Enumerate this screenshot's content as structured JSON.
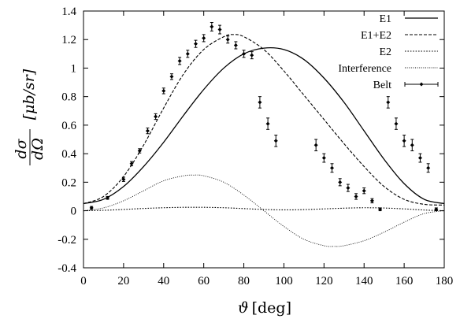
{
  "chart_data": {
    "type": "line",
    "xlabel_symbol": "ϑ",
    "xlabel_unit": "[deg]",
    "ylabel_num": "dσ",
    "ylabel_den": "dΩ",
    "ylabel_unit": "[μb/sr]",
    "xlim": [
      0,
      180
    ],
    "ylim": [
      -0.4,
      1.4
    ],
    "xticks": [
      0,
      20,
      40,
      60,
      80,
      100,
      120,
      140,
      160,
      180
    ],
    "yticks": [
      -0.4,
      -0.2,
      0,
      0.2,
      0.4,
      0.6,
      0.8,
      1,
      1.2,
      1.4
    ],
    "ytick_labels": [
      "-0.4",
      "-0.2",
      "0",
      "0.2",
      "0.4",
      "0.6",
      "0.8",
      "1",
      "1.2",
      "1.4"
    ],
    "grid": false,
    "legend_position": "top-right",
    "series": [
      {
        "name": "E1",
        "style": "solid",
        "x": [
          0,
          10,
          20,
          30,
          40,
          50,
          60,
          70,
          80,
          90,
          100,
          110,
          120,
          130,
          140,
          150,
          160,
          170,
          180
        ],
        "y": [
          0.05,
          0.08,
          0.17,
          0.31,
          0.48,
          0.67,
          0.85,
          1.0,
          1.1,
          1.14,
          1.13,
          1.06,
          0.93,
          0.76,
          0.56,
          0.36,
          0.19,
          0.08,
          0.05
        ]
      },
      {
        "name": "E1+E2",
        "style": "dashed",
        "x": [
          0,
          10,
          20,
          30,
          40,
          50,
          60,
          70,
          75,
          80,
          90,
          100,
          110,
          120,
          130,
          140,
          150,
          160,
          170,
          180
        ],
        "y": [
          0.05,
          0.1,
          0.24,
          0.46,
          0.72,
          0.96,
          1.13,
          1.22,
          1.235,
          1.22,
          1.13,
          0.98,
          0.81,
          0.64,
          0.47,
          0.31,
          0.17,
          0.08,
          0.045,
          0.04
        ]
      },
      {
        "name": "E2",
        "style": "dotted",
        "x": [
          0,
          10,
          20,
          30,
          40,
          50,
          60,
          70,
          80,
          90,
          100,
          110,
          120,
          130,
          140,
          150,
          160,
          170,
          180
        ],
        "y": [
          0.0,
          0.003,
          0.009,
          0.016,
          0.021,
          0.024,
          0.024,
          0.021,
          0.015,
          0.009,
          0.006,
          0.008,
          0.013,
          0.018,
          0.021,
          0.019,
          0.013,
          0.005,
          0.0
        ]
      },
      {
        "name": "Interference",
        "style": "fine-dotted",
        "x": [
          0,
          10,
          20,
          30,
          40,
          50,
          55,
          60,
          70,
          80,
          90,
          100,
          110,
          120,
          125,
          130,
          140,
          150,
          160,
          170,
          180
        ],
        "y": [
          0.0,
          0.02,
          0.07,
          0.14,
          0.21,
          0.245,
          0.25,
          0.245,
          0.2,
          0.11,
          0.0,
          -0.11,
          -0.2,
          -0.245,
          -0.25,
          -0.245,
          -0.21,
          -0.15,
          -0.08,
          -0.02,
          0.0
        ]
      },
      {
        "name": "Belt",
        "style": "points-with-errorbars",
        "x": [
          4,
          12,
          20,
          24,
          28,
          32,
          36,
          40,
          44,
          48,
          52,
          56,
          60,
          64,
          68,
          72,
          76,
          80,
          84,
          88,
          92,
          96,
          116,
          120,
          124,
          128,
          132,
          136,
          140,
          144,
          148,
          152,
          156,
          160,
          164,
          168,
          172,
          176
        ],
        "y": [
          0.02,
          0.09,
          0.22,
          0.33,
          0.42,
          0.56,
          0.66,
          0.84,
          0.94,
          1.05,
          1.1,
          1.17,
          1.21,
          1.29,
          1.27,
          1.2,
          1.16,
          1.1,
          1.09,
          0.76,
          0.61,
          0.49,
          0.46,
          0.37,
          0.3,
          0.2,
          0.16,
          0.1,
          0.14,
          0.07,
          0.01,
          0.76,
          0.61,
          0.49,
          0.46,
          0.37,
          0.3,
          0.01
        ],
        "err": [
          0.01,
          0.01,
          0.015,
          0.015,
          0.015,
          0.02,
          0.02,
          0.02,
          0.02,
          0.025,
          0.025,
          0.025,
          0.025,
          0.03,
          0.03,
          0.025,
          0.025,
          0.025,
          0.025,
          0.04,
          0.04,
          0.04,
          0.04,
          0.03,
          0.03,
          0.025,
          0.025,
          0.02,
          0.02,
          0.015,
          0.01,
          0.04,
          0.04,
          0.04,
          0.04,
          0.03,
          0.03,
          0.01
        ]
      }
    ]
  }
}
